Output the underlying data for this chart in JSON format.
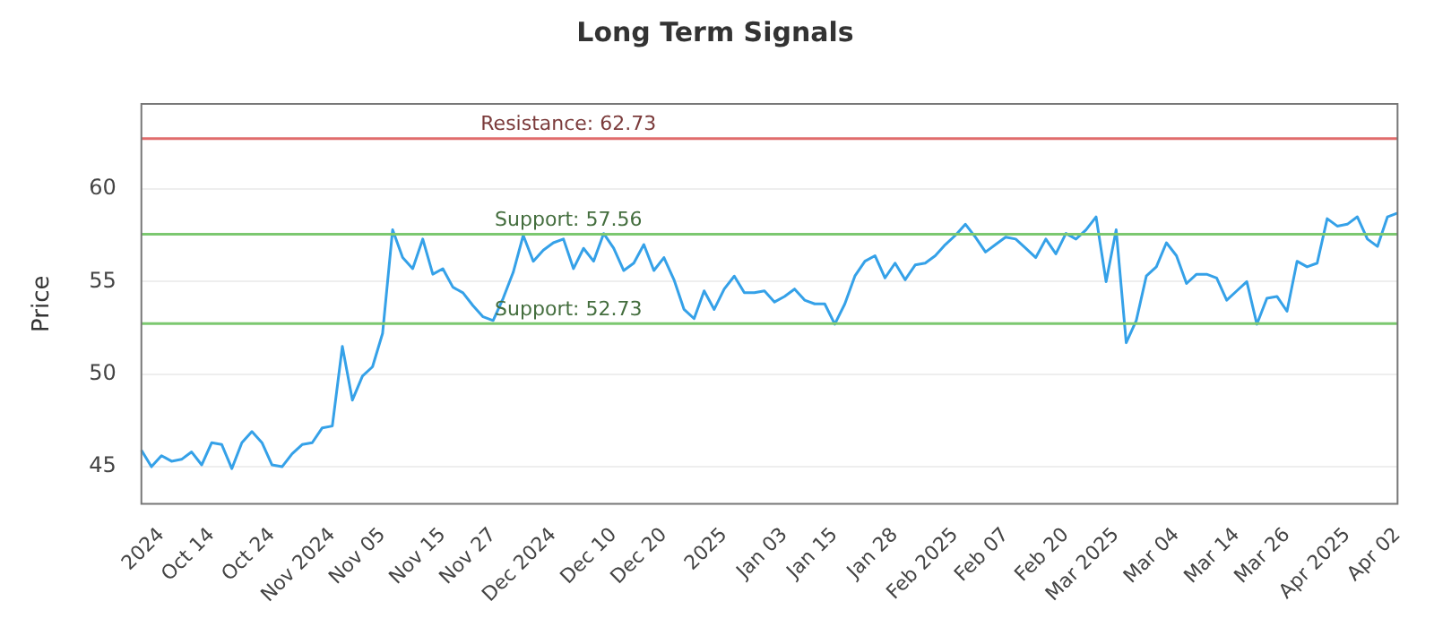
{
  "chart_data": {
    "type": "line",
    "title": "Long Term Signals",
    "ylabel": "Price",
    "categories": [
      null,
      null,
      "2024",
      null,
      null,
      null,
      null,
      "Oct 14",
      null,
      null,
      null,
      null,
      null,
      "Oct 24",
      null,
      null,
      null,
      null,
      null,
      "Nov 2024",
      null,
      null,
      null,
      null,
      "Nov 05",
      null,
      null,
      null,
      null,
      null,
      "Nov 15",
      null,
      null,
      null,
      null,
      "Nov 27",
      null,
      null,
      null,
      null,
      null,
      "Dec 2024",
      null,
      null,
      null,
      null,
      null,
      "Dec 10",
      null,
      null,
      null,
      null,
      "Dec 20",
      null,
      null,
      null,
      null,
      null,
      "2025",
      null,
      null,
      null,
      null,
      null,
      "Jan 03",
      null,
      null,
      null,
      null,
      "Jan 15",
      null,
      null,
      null,
      null,
      null,
      "Jan 28",
      null,
      null,
      null,
      null,
      null,
      "Feb 2025",
      null,
      null,
      null,
      null,
      "Feb 07",
      null,
      null,
      null,
      null,
      null,
      "Feb 20",
      null,
      null,
      null,
      null,
      "Mar 2025",
      null,
      null,
      null,
      null,
      null,
      "Mar 04",
      null,
      null,
      null,
      null,
      null,
      "Mar 14",
      null,
      null,
      null,
      null,
      "Mar 26",
      null,
      null,
      null,
      null,
      null,
      "Apr 2025",
      null,
      null,
      null,
      null,
      "Apr 02"
    ],
    "series": [
      {
        "color": "#35a1e8",
        "values": [
          45.9,
          45.0,
          45.6,
          45.3,
          45.4,
          45.8,
          45.1,
          46.3,
          46.2,
          44.9,
          46.3,
          46.9,
          46.3,
          45.1,
          45.0,
          45.7,
          46.2,
          46.3,
          47.1,
          47.2,
          51.5,
          48.6,
          49.9,
          50.4,
          52.2,
          57.8,
          56.3,
          55.7,
          57.3,
          55.4,
          55.7,
          54.7,
          54.4,
          53.7,
          53.1,
          52.9,
          54.1,
          55.5,
          57.5,
          56.1,
          56.7,
          57.1,
          57.3,
          55.7,
          56.8,
          56.1,
          57.6,
          56.8,
          55.6,
          56.0,
          57.0,
          55.6,
          56.3,
          55.1,
          53.5,
          53.0,
          54.5,
          53.5,
          54.6,
          55.3,
          54.4,
          54.4,
          54.5,
          53.9,
          54.2,
          54.6,
          54.0,
          53.8,
          53.8,
          52.7,
          53.8,
          55.3,
          56.1,
          56.4,
          55.2,
          56.0,
          55.1,
          55.9,
          56.0,
          56.4,
          57.0,
          57.5,
          58.1,
          57.4,
          56.6,
          57.0,
          57.4,
          57.3,
          56.8,
          56.3,
          57.3,
          56.5,
          57.6,
          57.3,
          57.8,
          58.5,
          55.0,
          57.8,
          51.7,
          52.9,
          55.3,
          55.8,
          57.1,
          56.4,
          54.9,
          55.4,
          55.4,
          55.2,
          54.0,
          54.5,
          55.0,
          52.7,
          54.1,
          54.2,
          53.4,
          56.1,
          55.8,
          56.0,
          58.4,
          58.0,
          58.1,
          58.5,
          57.3,
          56.9,
          58.5,
          58.7
        ]
      }
    ],
    "ylim": [
      43,
      64.6
    ],
    "yticks": [
      45,
      50,
      55,
      60
    ],
    "grid": "y",
    "legend": false,
    "marker": "none",
    "line_style": "solid",
    "ref_lines": [
      {
        "axis": "y",
        "value": 62.73,
        "label": "Resistance: 62.73",
        "color": "#e06c6c"
      },
      {
        "axis": "y",
        "value": 57.56,
        "label": "Support: 57.56",
        "color": "#7cc870"
      },
      {
        "axis": "y",
        "value": 52.73,
        "label": "Support: 52.73",
        "color": "#7cc870"
      }
    ]
  }
}
